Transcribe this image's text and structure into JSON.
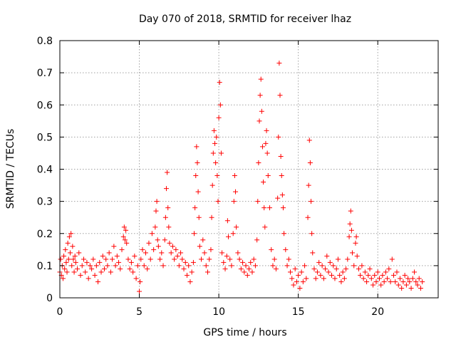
{
  "chart_data": {
    "type": "scatter",
    "title": "Day 070 of 2018, SRMTID for receiver lhaz",
    "xlabel": "GPS time / hours",
    "ylabel": "SRMTID / TECUs",
    "xlim": [
      0,
      23.8
    ],
    "ylim": [
      0,
      0.8
    ],
    "x_ticks": [
      0,
      5,
      10,
      15,
      20
    ],
    "x_tick_labels": [
      "0",
      "5",
      "10",
      "15",
      "20"
    ],
    "y_ticks": [
      0,
      0.1,
      0.2,
      0.3,
      0.4,
      0.5,
      0.6,
      0.7,
      0.8
    ],
    "y_tick_labels": [
      "0",
      "0.1",
      "0.2",
      "0.3",
      "0.4",
      "0.5",
      "0.6",
      "0.7",
      "0.8"
    ],
    "grid": true,
    "marker": "plus",
    "marker_color": "#ff0000",
    "series": [
      {
        "name": "SRMTID",
        "points": [
          [
            0.0,
            0.08
          ],
          [
            0.05,
            0.12
          ],
          [
            0.1,
            0.07
          ],
          [
            0.15,
            0.1
          ],
          [
            0.2,
            0.06
          ],
          [
            0.25,
            0.13
          ],
          [
            0.3,
            0.09
          ],
          [
            0.35,
            0.15
          ],
          [
            0.4,
            0.11
          ],
          [
            0.45,
            0.08
          ],
          [
            0.5,
            0.17
          ],
          [
            0.55,
            0.12
          ],
          [
            0.6,
            0.19
          ],
          [
            0.65,
            0.14
          ],
          [
            0.7,
            0.2
          ],
          [
            0.75,
            0.1
          ],
          [
            0.8,
            0.16
          ],
          [
            0.85,
            0.12
          ],
          [
            0.9,
            0.08
          ],
          [
            0.95,
            0.13
          ],
          [
            1.0,
            0.11
          ],
          [
            1.1,
            0.09
          ],
          [
            1.2,
            0.14
          ],
          [
            1.3,
            0.07
          ],
          [
            1.4,
            0.1
          ],
          [
            1.5,
            0.12
          ],
          [
            1.6,
            0.08
          ],
          [
            1.7,
            0.11
          ],
          [
            1.8,
            0.06
          ],
          [
            1.9,
            0.1
          ],
          [
            2.0,
            0.09
          ],
          [
            2.1,
            0.12
          ],
          [
            2.2,
            0.07
          ],
          [
            2.3,
            0.1
          ],
          [
            2.4,
            0.05
          ],
          [
            2.5,
            0.11
          ],
          [
            2.6,
            0.08
          ],
          [
            2.7,
            0.13
          ],
          [
            2.8,
            0.09
          ],
          [
            2.9,
            0.12
          ],
          [
            3.0,
            0.1
          ],
          [
            3.1,
            0.14
          ],
          [
            3.2,
            0.08
          ],
          [
            3.3,
            0.12
          ],
          [
            3.4,
            0.16
          ],
          [
            3.5,
            0.1
          ],
          [
            3.6,
            0.13
          ],
          [
            3.7,
            0.11
          ],
          [
            3.8,
            0.09
          ],
          [
            3.9,
            0.15
          ],
          [
            4.0,
            0.19
          ],
          [
            4.05,
            0.22
          ],
          [
            4.1,
            0.18
          ],
          [
            4.15,
            0.21
          ],
          [
            4.2,
            0.17
          ],
          [
            4.3,
            0.12
          ],
          [
            4.4,
            0.09
          ],
          [
            4.5,
            0.11
          ],
          [
            4.6,
            0.08
          ],
          [
            4.7,
            0.13
          ],
          [
            4.8,
            0.06
          ],
          [
            4.9,
            0.1
          ],
          [
            5.0,
            0.02
          ],
          [
            5.05,
            0.05
          ],
          [
            5.1,
            0.12
          ],
          [
            5.2,
            0.15
          ],
          [
            5.3,
            0.1
          ],
          [
            5.4,
            0.14
          ],
          [
            5.5,
            0.09
          ],
          [
            5.6,
            0.17
          ],
          [
            5.7,
            0.12
          ],
          [
            5.8,
            0.2
          ],
          [
            5.9,
            0.15
          ],
          [
            6.0,
            0.22
          ],
          [
            6.05,
            0.27
          ],
          [
            6.1,
            0.3
          ],
          [
            6.15,
            0.18
          ],
          [
            6.2,
            0.16
          ],
          [
            6.3,
            0.12
          ],
          [
            6.4,
            0.14
          ],
          [
            6.5,
            0.1
          ],
          [
            6.6,
            0.18
          ],
          [
            6.65,
            0.25
          ],
          [
            6.7,
            0.34
          ],
          [
            6.75,
            0.39
          ],
          [
            6.8,
            0.28
          ],
          [
            6.85,
            0.22
          ],
          [
            6.9,
            0.17
          ],
          [
            7.0,
            0.14
          ],
          [
            7.1,
            0.16
          ],
          [
            7.2,
            0.12
          ],
          [
            7.3,
            0.15
          ],
          [
            7.4,
            0.13
          ],
          [
            7.5,
            0.1
          ],
          [
            7.6,
            0.14
          ],
          [
            7.7,
            0.12
          ],
          [
            7.8,
            0.09
          ],
          [
            7.9,
            0.11
          ],
          [
            8.0,
            0.07
          ],
          [
            8.1,
            0.1
          ],
          [
            8.2,
            0.05
          ],
          [
            8.3,
            0.08
          ],
          [
            8.4,
            0.11
          ],
          [
            8.45,
            0.2
          ],
          [
            8.5,
            0.28
          ],
          [
            8.55,
            0.38
          ],
          [
            8.6,
            0.47
          ],
          [
            8.65,
            0.42
          ],
          [
            8.7,
            0.33
          ],
          [
            8.75,
            0.25
          ],
          [
            8.8,
            0.16
          ],
          [
            8.9,
            0.12
          ],
          [
            9.0,
            0.18
          ],
          [
            9.1,
            0.14
          ],
          [
            9.2,
            0.1
          ],
          [
            9.3,
            0.08
          ],
          [
            9.4,
            0.12
          ],
          [
            9.5,
            0.15
          ],
          [
            9.55,
            0.25
          ],
          [
            9.6,
            0.35
          ],
          [
            9.65,
            0.45
          ],
          [
            9.7,
            0.52
          ],
          [
            9.75,
            0.48
          ],
          [
            9.8,
            0.42
          ],
          [
            9.85,
            0.5
          ],
          [
            9.9,
            0.38
          ],
          [
            9.95,
            0.3
          ],
          [
            10.0,
            0.56
          ],
          [
            10.05,
            0.67
          ],
          [
            10.1,
            0.6
          ],
          [
            10.15,
            0.45
          ],
          [
            10.2,
            0.14
          ],
          [
            10.3,
            0.11
          ],
          [
            10.4,
            0.09
          ],
          [
            10.5,
            0.13
          ],
          [
            10.55,
            0.24
          ],
          [
            10.6,
            0.19
          ],
          [
            10.7,
            0.12
          ],
          [
            10.8,
            0.1
          ],
          [
            10.9,
            0.2
          ],
          [
            10.95,
            0.3
          ],
          [
            11.0,
            0.38
          ],
          [
            11.05,
            0.33
          ],
          [
            11.1,
            0.22
          ],
          [
            11.2,
            0.14
          ],
          [
            11.3,
            0.12
          ],
          [
            11.4,
            0.09
          ],
          [
            11.5,
            0.11
          ],
          [
            11.6,
            0.08
          ],
          [
            11.7,
            0.1
          ],
          [
            11.8,
            0.07
          ],
          [
            11.9,
            0.09
          ],
          [
            12.0,
            0.11
          ],
          [
            12.1,
            0.08
          ],
          [
            12.2,
            0.12
          ],
          [
            12.3,
            0.1
          ],
          [
            12.4,
            0.18
          ],
          [
            12.45,
            0.3
          ],
          [
            12.5,
            0.42
          ],
          [
            12.55,
            0.55
          ],
          [
            12.6,
            0.63
          ],
          [
            12.65,
            0.68
          ],
          [
            12.7,
            0.58
          ],
          [
            12.75,
            0.47
          ],
          [
            12.8,
            0.36
          ],
          [
            12.85,
            0.28
          ],
          [
            12.9,
            0.22
          ],
          [
            12.95,
            0.48
          ],
          [
            13.0,
            0.52
          ],
          [
            13.05,
            0.45
          ],
          [
            13.1,
            0.38
          ],
          [
            13.2,
            0.28
          ],
          [
            13.3,
            0.15
          ],
          [
            13.4,
            0.1
          ],
          [
            13.5,
            0.12
          ],
          [
            13.6,
            0.09
          ],
          [
            13.7,
            0.31
          ],
          [
            13.75,
            0.5
          ],
          [
            13.8,
            0.73
          ],
          [
            13.85,
            0.63
          ],
          [
            13.9,
            0.44
          ],
          [
            13.95,
            0.38
          ],
          [
            14.0,
            0.32
          ],
          [
            14.05,
            0.28
          ],
          [
            14.1,
            0.2
          ],
          [
            14.2,
            0.15
          ],
          [
            14.3,
            0.1
          ],
          [
            14.4,
            0.12
          ],
          [
            14.5,
            0.08
          ],
          [
            14.6,
            0.06
          ],
          [
            14.7,
            0.04
          ],
          [
            14.8,
            0.09
          ],
          [
            14.9,
            0.05
          ],
          [
            15.0,
            0.07
          ],
          [
            15.1,
            0.03
          ],
          [
            15.2,
            0.08
          ],
          [
            15.3,
            0.05
          ],
          [
            15.4,
            0.1
          ],
          [
            15.5,
            0.06
          ],
          [
            15.6,
            0.25
          ],
          [
            15.65,
            0.35
          ],
          [
            15.7,
            0.49
          ],
          [
            15.75,
            0.42
          ],
          [
            15.8,
            0.3
          ],
          [
            15.85,
            0.2
          ],
          [
            15.9,
            0.14
          ],
          [
            16.0,
            0.09
          ],
          [
            16.1,
            0.06
          ],
          [
            16.2,
            0.08
          ],
          [
            16.3,
            0.11
          ],
          [
            16.4,
            0.07
          ],
          [
            16.5,
            0.1
          ],
          [
            16.6,
            0.06
          ],
          [
            16.7,
            0.09
          ],
          [
            16.8,
            0.13
          ],
          [
            16.9,
            0.08
          ],
          [
            17.0,
            0.11
          ],
          [
            17.1,
            0.07
          ],
          [
            17.2,
            0.1
          ],
          [
            17.3,
            0.06
          ],
          [
            17.4,
            0.09
          ],
          [
            17.5,
            0.12
          ],
          [
            17.6,
            0.07
          ],
          [
            17.7,
            0.05
          ],
          [
            17.8,
            0.08
          ],
          [
            17.9,
            0.06
          ],
          [
            18.0,
            0.09
          ],
          [
            18.1,
            0.12
          ],
          [
            18.2,
            0.19
          ],
          [
            18.25,
            0.23
          ],
          [
            18.3,
            0.27
          ],
          [
            18.35,
            0.21
          ],
          [
            18.4,
            0.14
          ],
          [
            18.5,
            0.1
          ],
          [
            18.6,
            0.17
          ],
          [
            18.65,
            0.19
          ],
          [
            18.7,
            0.13
          ],
          [
            18.8,
            0.09
          ],
          [
            18.9,
            0.07
          ],
          [
            19.0,
            0.1
          ],
          [
            19.1,
            0.06
          ],
          [
            19.2,
            0.08
          ],
          [
            19.3,
            0.05
          ],
          [
            19.4,
            0.07
          ],
          [
            19.5,
            0.09
          ],
          [
            19.6,
            0.06
          ],
          [
            19.7,
            0.04
          ],
          [
            19.8,
            0.07
          ],
          [
            19.9,
            0.05
          ],
          [
            20.0,
            0.08
          ],
          [
            20.1,
            0.06
          ],
          [
            20.2,
            0.04
          ],
          [
            20.3,
            0.07
          ],
          [
            20.4,
            0.05
          ],
          [
            20.5,
            0.08
          ],
          [
            20.6,
            0.06
          ],
          [
            20.7,
            0.09
          ],
          [
            20.8,
            0.05
          ],
          [
            20.9,
            0.12
          ],
          [
            21.0,
            0.07
          ],
          [
            21.1,
            0.05
          ],
          [
            21.2,
            0.08
          ],
          [
            21.3,
            0.04
          ],
          [
            21.4,
            0.06
          ],
          [
            21.5,
            0.03
          ],
          [
            21.6,
            0.05
          ],
          [
            21.7,
            0.07
          ],
          [
            21.8,
            0.04
          ],
          [
            21.9,
            0.06
          ],
          [
            22.0,
            0.05
          ],
          [
            22.1,
            0.03
          ],
          [
            22.2,
            0.06
          ],
          [
            22.3,
            0.08
          ],
          [
            22.4,
            0.05
          ],
          [
            22.5,
            0.04
          ],
          [
            22.6,
            0.06
          ],
          [
            22.7,
            0.03
          ],
          [
            22.8,
            0.05
          ]
        ]
      }
    ]
  }
}
